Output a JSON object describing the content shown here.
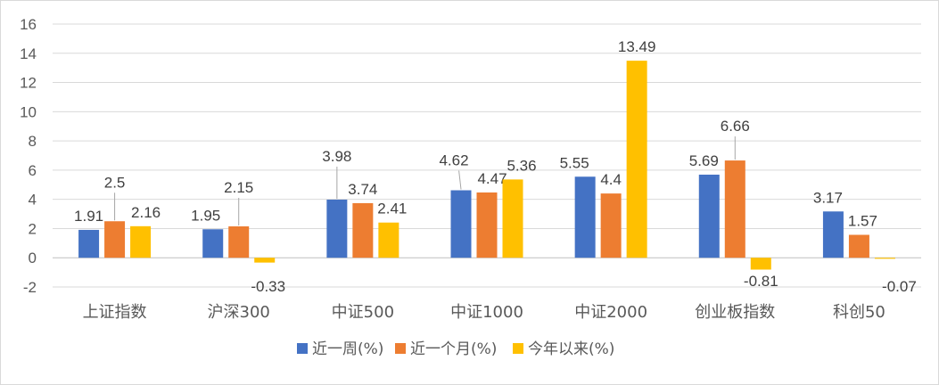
{
  "chart_data": {
    "type": "bar",
    "title": "",
    "xlabel": "",
    "ylabel": "",
    "ylim": [
      -2,
      16
    ],
    "yticks": [
      -2,
      0,
      2,
      4,
      6,
      8,
      10,
      12,
      14,
      16
    ],
    "grid": "horizontal",
    "legend_position": "bottom",
    "categories": [
      "上证指数",
      "沪深300",
      "中证500",
      "中证1000",
      "中证2000",
      "创业板指数",
      "科创50"
    ],
    "series": [
      {
        "name": "近一周(%)",
        "color": "#4472C4",
        "values": [
          1.91,
          1.95,
          3.98,
          4.62,
          5.55,
          5.69,
          3.17
        ]
      },
      {
        "name": "近一个月(%)",
        "color": "#ED7D31",
        "values": [
          2.5,
          2.15,
          3.74,
          4.47,
          4.4,
          6.66,
          1.57
        ]
      },
      {
        "name": "今年以来(%)",
        "color": "#FFC000",
        "values": [
          2.16,
          -0.33,
          2.41,
          5.36,
          13.49,
          -0.81,
          -0.07
        ]
      }
    ]
  }
}
